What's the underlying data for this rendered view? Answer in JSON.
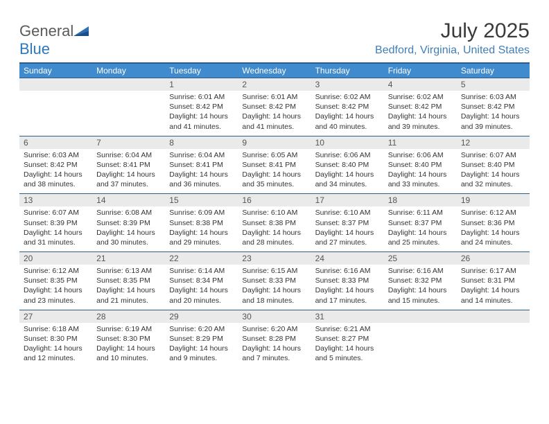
{
  "brand": {
    "part1": "General",
    "part2": "Blue"
  },
  "title": "July 2025",
  "location": "Bedford, Virginia, United States",
  "colors": {
    "header_bg": "#3f8bcd",
    "header_border": "#2c5d8a",
    "daynum_bg": "#eaeaea",
    "location_color": "#3f7fb8"
  },
  "weekdays": [
    "Sunday",
    "Monday",
    "Tuesday",
    "Wednesday",
    "Thursday",
    "Friday",
    "Saturday"
  ],
  "weeks": [
    [
      null,
      null,
      {
        "n": "1",
        "sr": "6:01 AM",
        "ss": "8:42 PM",
        "dl": "14 hours and 41 minutes."
      },
      {
        "n": "2",
        "sr": "6:01 AM",
        "ss": "8:42 PM",
        "dl": "14 hours and 41 minutes."
      },
      {
        "n": "3",
        "sr": "6:02 AM",
        "ss": "8:42 PM",
        "dl": "14 hours and 40 minutes."
      },
      {
        "n": "4",
        "sr": "6:02 AM",
        "ss": "8:42 PM",
        "dl": "14 hours and 39 minutes."
      },
      {
        "n": "5",
        "sr": "6:03 AM",
        "ss": "8:42 PM",
        "dl": "14 hours and 39 minutes."
      }
    ],
    [
      {
        "n": "6",
        "sr": "6:03 AM",
        "ss": "8:42 PM",
        "dl": "14 hours and 38 minutes."
      },
      {
        "n": "7",
        "sr": "6:04 AM",
        "ss": "8:41 PM",
        "dl": "14 hours and 37 minutes."
      },
      {
        "n": "8",
        "sr": "6:04 AM",
        "ss": "8:41 PM",
        "dl": "14 hours and 36 minutes."
      },
      {
        "n": "9",
        "sr": "6:05 AM",
        "ss": "8:41 PM",
        "dl": "14 hours and 35 minutes."
      },
      {
        "n": "10",
        "sr": "6:06 AM",
        "ss": "8:40 PM",
        "dl": "14 hours and 34 minutes."
      },
      {
        "n": "11",
        "sr": "6:06 AM",
        "ss": "8:40 PM",
        "dl": "14 hours and 33 minutes."
      },
      {
        "n": "12",
        "sr": "6:07 AM",
        "ss": "8:40 PM",
        "dl": "14 hours and 32 minutes."
      }
    ],
    [
      {
        "n": "13",
        "sr": "6:07 AM",
        "ss": "8:39 PM",
        "dl": "14 hours and 31 minutes."
      },
      {
        "n": "14",
        "sr": "6:08 AM",
        "ss": "8:39 PM",
        "dl": "14 hours and 30 minutes."
      },
      {
        "n": "15",
        "sr": "6:09 AM",
        "ss": "8:38 PM",
        "dl": "14 hours and 29 minutes."
      },
      {
        "n": "16",
        "sr": "6:10 AM",
        "ss": "8:38 PM",
        "dl": "14 hours and 28 minutes."
      },
      {
        "n": "17",
        "sr": "6:10 AM",
        "ss": "8:37 PM",
        "dl": "14 hours and 27 minutes."
      },
      {
        "n": "18",
        "sr": "6:11 AM",
        "ss": "8:37 PM",
        "dl": "14 hours and 25 minutes."
      },
      {
        "n": "19",
        "sr": "6:12 AM",
        "ss": "8:36 PM",
        "dl": "14 hours and 24 minutes."
      }
    ],
    [
      {
        "n": "20",
        "sr": "6:12 AM",
        "ss": "8:35 PM",
        "dl": "14 hours and 23 minutes."
      },
      {
        "n": "21",
        "sr": "6:13 AM",
        "ss": "8:35 PM",
        "dl": "14 hours and 21 minutes."
      },
      {
        "n": "22",
        "sr": "6:14 AM",
        "ss": "8:34 PM",
        "dl": "14 hours and 20 minutes."
      },
      {
        "n": "23",
        "sr": "6:15 AM",
        "ss": "8:33 PM",
        "dl": "14 hours and 18 minutes."
      },
      {
        "n": "24",
        "sr": "6:16 AM",
        "ss": "8:33 PM",
        "dl": "14 hours and 17 minutes."
      },
      {
        "n": "25",
        "sr": "6:16 AM",
        "ss": "8:32 PM",
        "dl": "14 hours and 15 minutes."
      },
      {
        "n": "26",
        "sr": "6:17 AM",
        "ss": "8:31 PM",
        "dl": "14 hours and 14 minutes."
      }
    ],
    [
      {
        "n": "27",
        "sr": "6:18 AM",
        "ss": "8:30 PM",
        "dl": "14 hours and 12 minutes."
      },
      {
        "n": "28",
        "sr": "6:19 AM",
        "ss": "8:30 PM",
        "dl": "14 hours and 10 minutes."
      },
      {
        "n": "29",
        "sr": "6:20 AM",
        "ss": "8:29 PM",
        "dl": "14 hours and 9 minutes."
      },
      {
        "n": "30",
        "sr": "6:20 AM",
        "ss": "8:28 PM",
        "dl": "14 hours and 7 minutes."
      },
      {
        "n": "31",
        "sr": "6:21 AM",
        "ss": "8:27 PM",
        "dl": "14 hours and 5 minutes."
      },
      null,
      null
    ]
  ],
  "labels": {
    "sunrise": "Sunrise:",
    "sunset": "Sunset:",
    "daylight": "Daylight:"
  }
}
